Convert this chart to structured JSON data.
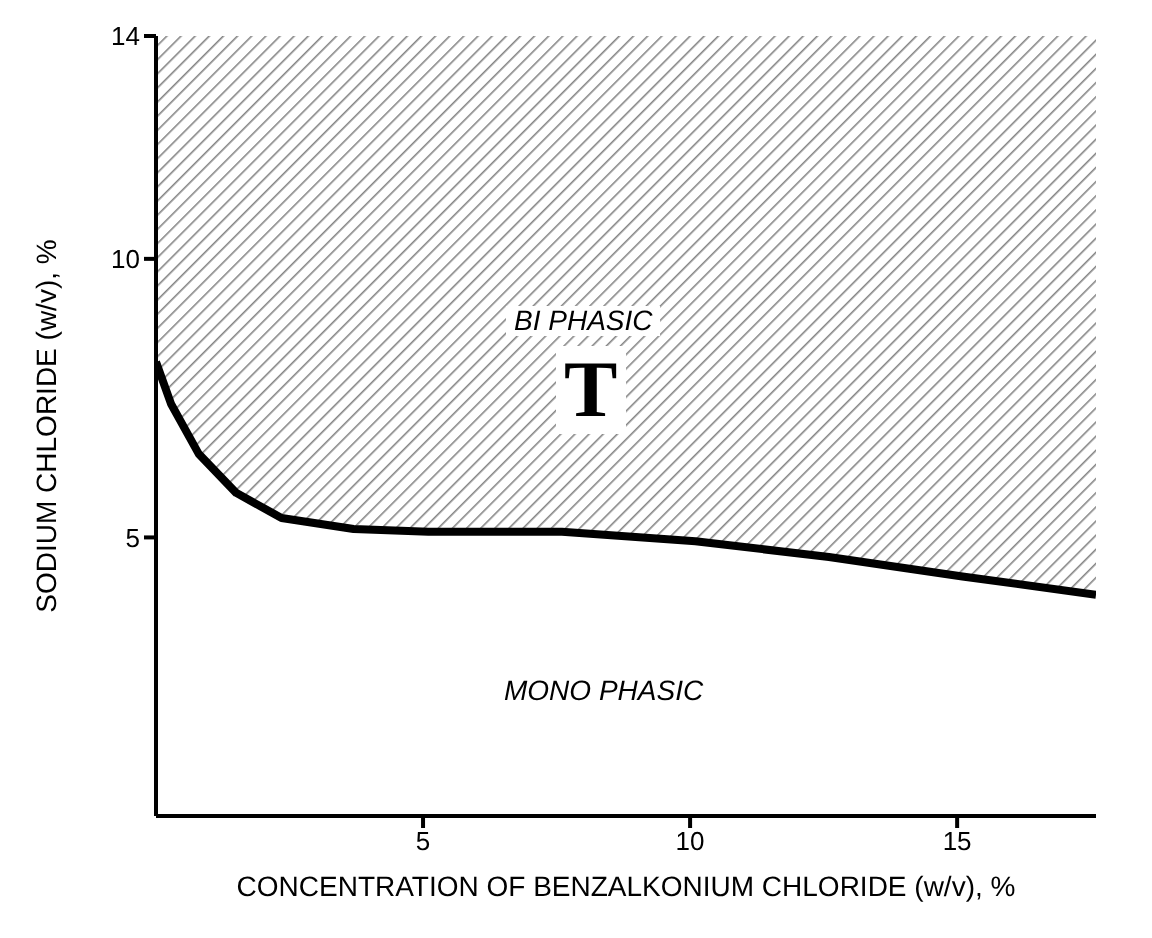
{
  "chart_data": {
    "type": "line",
    "xlabel": "CONCENTRATION OF BENZALKONIUM CHLORIDE (w/v), %",
    "ylabel": "SODIUM CHLORIDE (w/v), %",
    "x": [
      0,
      0.28,
      0.8,
      1.5,
      2.35,
      3.7,
      5.1,
      7.6,
      10.1,
      12.6,
      15.1,
      17.6
    ],
    "series": [
      {
        "color": "#000000",
        "values": [
          8.15,
          7.4,
          6.5,
          5.8,
          5.35,
          5.15,
          5.1,
          5.1,
          4.93,
          4.65,
          4.3,
          3.97
        ],
        "lower": [
          8.15,
          7.4,
          6.5,
          5.8,
          5.35,
          5.15,
          5.1,
          5.1,
          4.93,
          4.65,
          4.3,
          3.97
        ],
        "upper": [
          14,
          14,
          14,
          14,
          14,
          14,
          14,
          14,
          14,
          14,
          14,
          14
        ]
      }
    ],
    "xlim": [
      0,
      17.6
    ],
    "ylim": [
      0,
      14
    ],
    "xticks": [
      5,
      10,
      15
    ],
    "yticks": [
      5,
      10,
      14
    ],
    "annotations": [
      "BI PHASIC",
      "T",
      "MONO PHASIC"
    ],
    "marker": "none",
    "line_style": "solid"
  }
}
